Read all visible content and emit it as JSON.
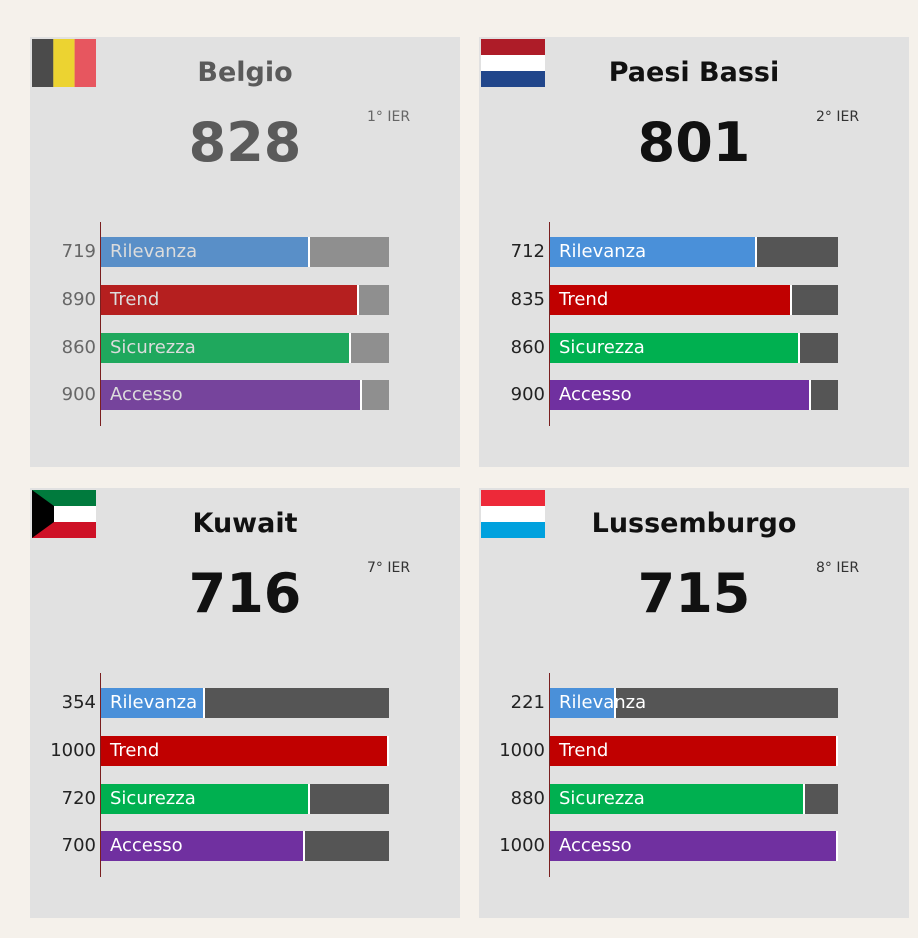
{
  "colors": {
    "Rilevanza": "#4a90d9",
    "Trend": "#c00000",
    "Sicurezza": "#00b050",
    "Accesso": "#7030a0"
  },
  "chart_data": [
    {
      "type": "bar",
      "title": "Belgio",
      "score": "828",
      "rank": "1° IER",
      "flag": "belgium-flag",
      "categories": [
        "Rilevanza",
        "Trend",
        "Sicurezza",
        "Accesso"
      ],
      "values": [
        719,
        890,
        860,
        900
      ],
      "xlim": [
        0,
        1000
      ]
    },
    {
      "type": "bar",
      "title": "Paesi Bassi",
      "score": "801",
      "rank": "2° IER",
      "flag": "netherlands-flag",
      "categories": [
        "Rilevanza",
        "Trend",
        "Sicurezza",
        "Accesso"
      ],
      "values": [
        712,
        835,
        860,
        900
      ],
      "xlim": [
        0,
        1000
      ]
    },
    {
      "type": "bar",
      "title": "Kuwait",
      "score": "716",
      "rank": "7° IER",
      "flag": "kuwait-flag",
      "categories": [
        "Rilevanza",
        "Trend",
        "Sicurezza",
        "Accesso"
      ],
      "values": [
        354,
        1000,
        720,
        700
      ],
      "xlim": [
        0,
        1000
      ]
    },
    {
      "type": "bar",
      "title": "Lussemburgo",
      "score": "715",
      "rank": "8° IER",
      "flag": "luxembourg-flag",
      "categories": [
        "Rilevanza",
        "Trend",
        "Sicurezza",
        "Accesso"
      ],
      "values": [
        221,
        1000,
        880,
        1000
      ],
      "xlim": [
        0,
        1000
      ]
    }
  ]
}
